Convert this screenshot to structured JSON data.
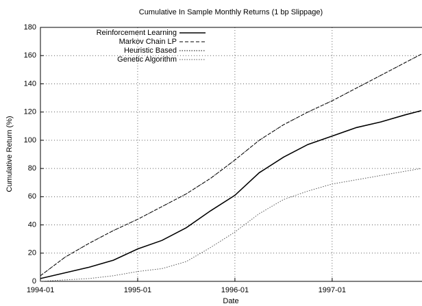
{
  "chart_data": {
    "type": "line",
    "title": "Cumulative In Sample Monthly Returns (1 bp Slippage)",
    "x_label": "Date",
    "y_label": "Cumulative Return (%)",
    "x": [
      "1994-01",
      "1994-04",
      "1994-07",
      "1994-10",
      "1995-01",
      "1995-04",
      "1995-07",
      "1995-10",
      "1996-01",
      "1996-04",
      "1996-07",
      "1996-10",
      "1997-01",
      "1997-04",
      "1997-07",
      "1997-10",
      "1997-12"
    ],
    "xlim": [
      "1994-01",
      "1997-12"
    ],
    "xticks": [
      "1994-01",
      "1995-01",
      "1996-01",
      "1997-01"
    ],
    "ylim": [
      0,
      180
    ],
    "yticks": [
      0,
      20,
      40,
      60,
      80,
      100,
      120,
      140,
      160,
      180
    ],
    "grid": true,
    "legend": "upper left",
    "series": [
      {
        "name": "Reinforcement Learning",
        "color": "#000000",
        "style": "solid",
        "values": [
          2,
          6,
          10,
          15,
          23,
          29,
          38,
          50,
          61,
          77,
          88,
          97,
          103,
          109,
          113,
          118,
          121
        ]
      },
      {
        "name": "Markov Chain LP",
        "color": "#000000",
        "style": "dashed",
        "values": [
          4,
          17,
          27,
          36,
          44,
          53,
          62,
          73,
          86,
          100,
          111,
          120,
          128,
          137,
          146,
          155,
          161
        ]
      },
      {
        "name": "Heuristic Based",
        "color": "#000000",
        "style": "dotted",
        "values": [
          4,
          17,
          27,
          36,
          44,
          53,
          62,
          73,
          86,
          100,
          111,
          120,
          128,
          137,
          146,
          155,
          161
        ]
      },
      {
        "name": "Genetic Algorithm",
        "color": "#555555",
        "style": "dotted",
        "values": [
          0,
          1,
          2,
          4,
          7,
          9,
          14,
          24,
          35,
          48,
          58,
          64,
          69,
          72,
          75,
          78,
          80
        ]
      }
    ]
  }
}
